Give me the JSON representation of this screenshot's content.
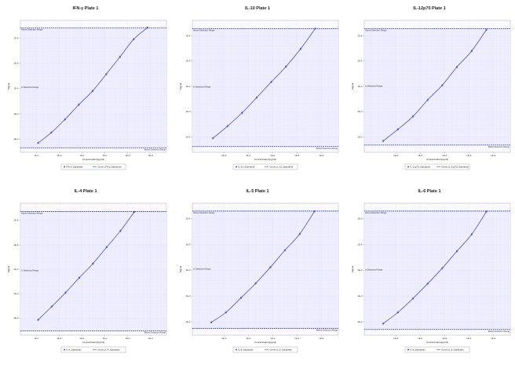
{
  "chart_data": [
    {
      "type": "scatter",
      "title": "IFN-γ Plate 1",
      "xlabel": "Concentration(pg/ml)",
      "ylabel": "Signal",
      "log_x": true,
      "log_y": true,
      "xlim": [
        0.02,
        50000
      ],
      "ylim": [
        30,
        5000000
      ],
      "x_ticks": [
        "1E-1",
        "1E+0",
        "1E+1",
        "1E+2",
        "1E+3",
        "1E+4"
      ],
      "y_ticks": [
        "1E+2",
        "1E+3",
        "1E+4",
        "1E+5",
        "1E+6"
      ],
      "upper_limit_label": "Above Detection Range",
      "upper_limit": 2500000,
      "middle_label": "In Detection Range",
      "lower_limit_label": "Below Detection Range",
      "lower_limit": 45,
      "series": [
        {
          "name": "IFN-γ_Standards",
          "x": [
            0.12,
            0.45,
            1.8,
            7.2,
            29,
            115,
            460,
            1840,
            7400
          ],
          "y": [
            70,
            180,
            600,
            2300,
            8000,
            37000,
            180000,
            900000,
            2600000
          ]
        },
        {
          "name": "Curve_IFN-γ_Standards",
          "curve": true
        }
      ]
    },
    {
      "type": "scatter",
      "title": "IL-10 Plate 1",
      "xlabel": "Concentration(pg/ml)",
      "ylabel": "Signal",
      "log_x": true,
      "log_y": true,
      "xlim": [
        0.05,
        50000
      ],
      "ylim": [
        25,
        4000000
      ],
      "x_ticks": [
        "1E+0",
        "1E+1",
        "1E+2",
        "1E+3",
        "1E+4"
      ],
      "y_ticks": [
        "1E+2",
        "1E+3",
        "1E+4",
        "1E+5",
        "1E+6"
      ],
      "upper_limit_label": "Above Detection Range",
      "upper_limit": 1900000,
      "middle_label": "In Detection Range",
      "lower_limit_label": "Below Detection Range",
      "lower_limit": 42,
      "series": [
        {
          "name": "IL-10_Standards",
          "x": [
            0.35,
            1.4,
            5.5,
            22,
            88,
            350,
            1400,
            5600
          ],
          "y": [
            90,
            270,
            900,
            3600,
            15000,
            60000,
            300000,
            1900000
          ]
        },
        {
          "name": "Curve_IL-10_Standards",
          "curve": true
        }
      ]
    },
    {
      "type": "scatter",
      "title": "IL-12p70 Plate 1",
      "xlabel": "Concentration(pg/ml)",
      "ylabel": "Signal",
      "log_x": true,
      "log_y": true,
      "xlim": [
        0.05,
        50000
      ],
      "ylim": [
        25,
        4000000
      ],
      "x_ticks": [
        "1E+0",
        "1E+1",
        "1E+2",
        "1E+3",
        "1E+4"
      ],
      "y_ticks": [
        "1E+2",
        "1E+3",
        "1E+4",
        "1E+5",
        "1E+6"
      ],
      "upper_limit_label": "Above Detection Range",
      "upper_limit": 1900000,
      "middle_label": "In Detection Range",
      "lower_limit_label": "Below Detection Range",
      "lower_limit": 48,
      "series": [
        {
          "name": "IL-12p70_Standards",
          "x": [
            0.3,
            1.2,
            5,
            20,
            80,
            320,
            1300,
            5200
          ],
          "y": [
            70,
            200,
            650,
            2900,
            11000,
            58000,
            250000,
            1700000
          ]
        },
        {
          "name": "Curve_IL-12p70_Standards",
          "curve": true
        }
      ]
    },
    {
      "type": "scatter",
      "title": "IL-4 Plate 1",
      "xlabel": "Concentration(pg/ml)",
      "ylabel": "Signal",
      "log_x": true,
      "log_y": true,
      "xlim": [
        0.02,
        50000
      ],
      "ylim": [
        20,
        5000000
      ],
      "x_ticks": [
        "1E-1",
        "1E+0",
        "1E+1",
        "1E+2",
        "1E+3",
        "1E+4"
      ],
      "y_ticks": [
        "1E+2",
        "1E+3",
        "1E+4",
        "1E+5",
        "1E+6"
      ],
      "upper_limit_label": "Above Detection Range",
      "upper_limit": 2300000,
      "middle_label": "In Detection Range",
      "lower_limit_label": "Below Detection Range",
      "lower_limit": 30,
      "series": [
        {
          "name": "IL-4_Standards",
          "x": [
            0.12,
            0.48,
            1.9,
            7.6,
            30,
            120,
            480,
            1920
          ],
          "y": [
            85,
            300,
            1100,
            4500,
            17000,
            80000,
            370000,
            2200000
          ]
        },
        {
          "name": "Curve_IL-4_Standards",
          "curve": true
        }
      ]
    },
    {
      "type": "scatter",
      "title": "IL-5 Plate 1",
      "xlabel": "Concentration(pg/ml)",
      "ylabel": "Signal",
      "log_x": true,
      "log_y": true,
      "xlim": [
        0.05,
        50000
      ],
      "ylim": [
        30,
        4000000
      ],
      "x_ticks": [
        "1E+0",
        "1E+1",
        "1E+2",
        "1E+3",
        "1E+4"
      ],
      "y_ticks": [
        "1E+2",
        "1E+3",
        "1E+4",
        "1E+5",
        "1E+6"
      ],
      "upper_limit_label": "Above Detection Range",
      "upper_limit": 2000000,
      "middle_label": "In Detection Range",
      "lower_limit_label": "Below Detection Range",
      "lower_limit": 55,
      "series": [
        {
          "name": "IL-5_Standards",
          "x": [
            0.3,
            1.2,
            5,
            20,
            80,
            320,
            1300,
            5200
          ],
          "y": [
            95,
            230,
            850,
            3100,
            13000,
            60000,
            260000,
            1950000
          ]
        },
        {
          "name": "Curve_IL-5_Standards",
          "curve": true
        }
      ]
    },
    {
      "type": "scatter",
      "title": "IL-6 Plate 1",
      "xlabel": "Concentration(pg/ml)",
      "ylabel": "Signal",
      "log_x": true,
      "log_y": true,
      "xlim": [
        0.05,
        50000
      ],
      "ylim": [
        30,
        4000000
      ],
      "x_ticks": [
        "1E+0",
        "1E+1",
        "1E+2",
        "1E+3",
        "1E+4"
      ],
      "y_ticks": [
        "1E+2",
        "1E+3",
        "1E+4",
        "1E+5",
        "1E+6"
      ],
      "upper_limit_label": "Above Detection Range",
      "upper_limit": 2000000,
      "middle_label": "In Detection Range",
      "lower_limit_label": "Below Detection Range",
      "lower_limit": 50,
      "series": [
        {
          "name": "IL-6_Standards",
          "x": [
            0.3,
            1.2,
            5,
            20,
            80,
            320,
            1300,
            5200
          ],
          "y": [
            85,
            230,
            800,
            3000,
            12000,
            55000,
            250000,
            1900000
          ]
        },
        {
          "name": "Curve_IL-6_Standards",
          "curve": true
        }
      ]
    }
  ],
  "colors": {
    "point": "#4b50c8",
    "curve": "#4b50c8",
    "plot_bg": "#eeeeff",
    "grid": "#cfcff0",
    "limit_line": "#3a3fbf",
    "frame": "#999999"
  }
}
